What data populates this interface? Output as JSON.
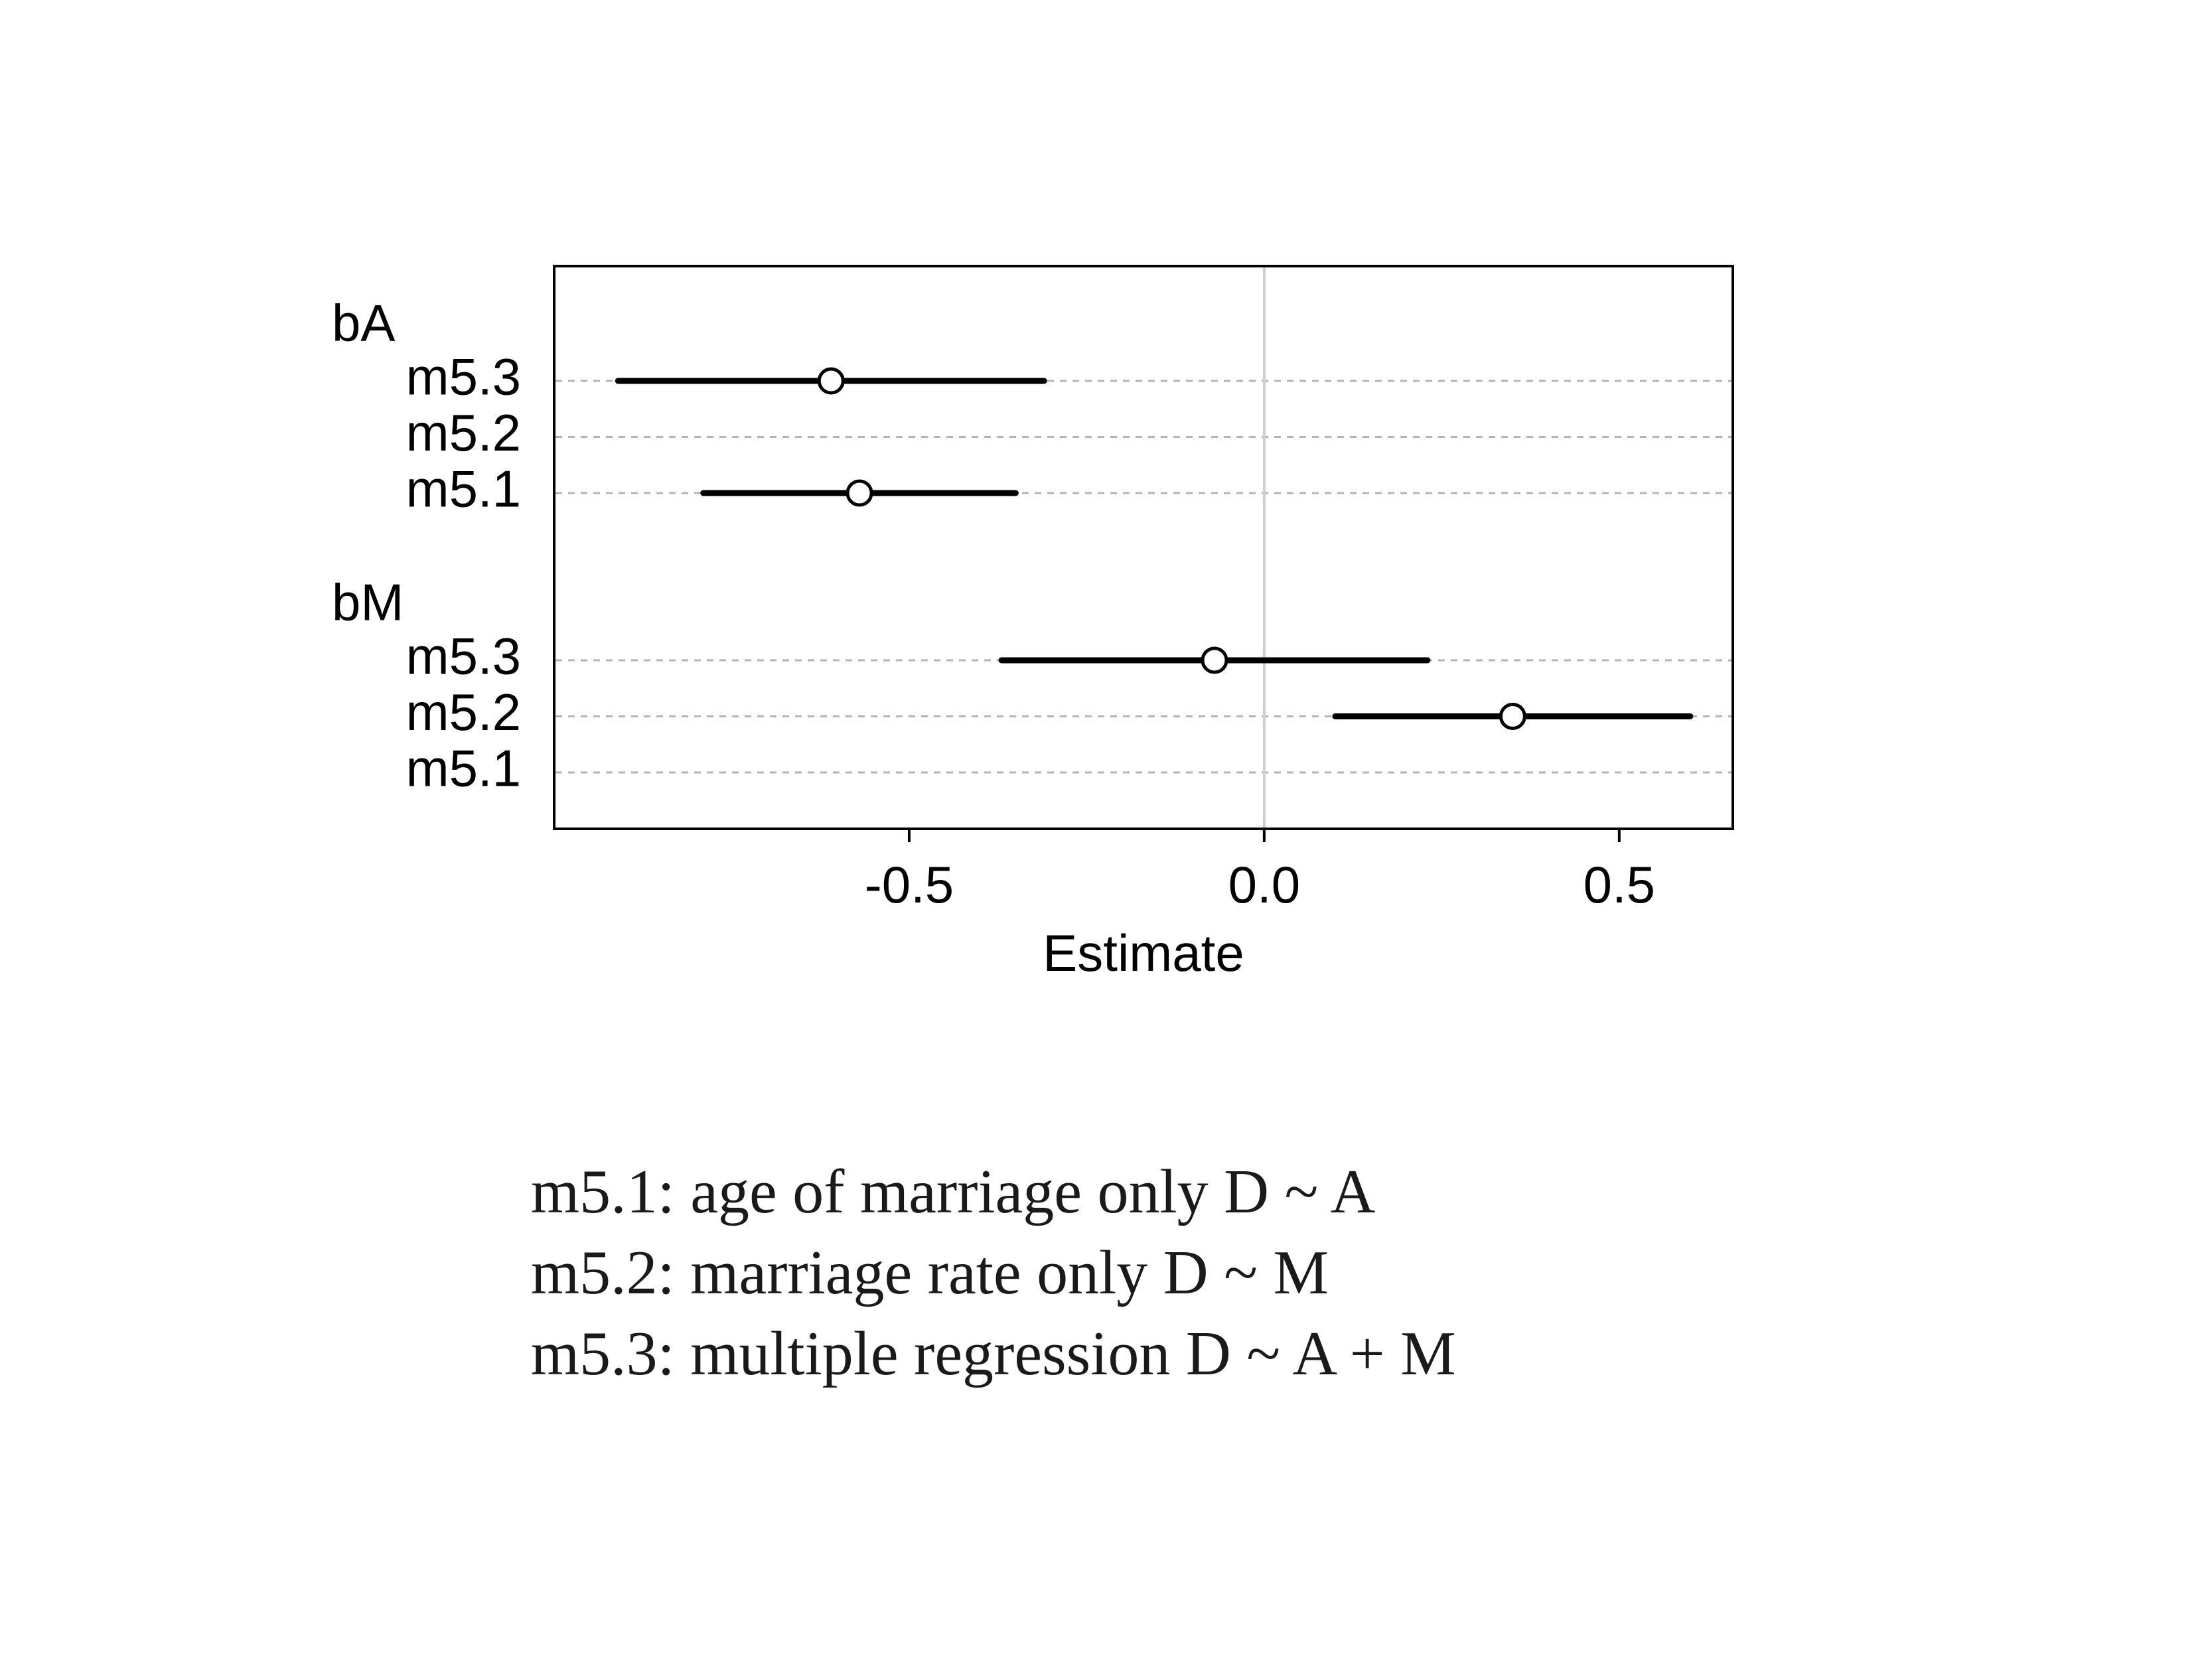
{
  "chart_data": {
    "type": "dot-interval",
    "title": "",
    "xlabel": "Estimate",
    "ylabel": "",
    "xlim": [
      -1.0,
      0.66
    ],
    "xticks": [
      -0.5,
      0.0,
      0.5
    ],
    "xtick_labels": [
      "-0.5",
      "0.0",
      "0.5"
    ],
    "reference_line_x": 0.0,
    "grid": "dashed horizontal row guides",
    "groups": [
      {
        "name": "bA",
        "rows": [
          {
            "label": "m5.3",
            "mean": -0.61,
            "lower": -0.91,
            "upper": -0.31
          },
          {
            "label": "m5.2",
            "mean": null,
            "lower": null,
            "upper": null
          },
          {
            "label": "m5.1",
            "mean": -0.57,
            "lower": -0.79,
            "upper": -0.35
          }
        ]
      },
      {
        "name": "bM",
        "rows": [
          {
            "label": "m5.3",
            "mean": -0.07,
            "lower": -0.37,
            "upper": 0.23
          },
          {
            "label": "m5.2",
            "mean": 0.35,
            "lower": 0.1,
            "upper": 0.6
          },
          {
            "label": "m5.1",
            "mean": null,
            "lower": null,
            "upper": null
          }
        ]
      }
    ],
    "colors": {
      "interval": "#000000",
      "point": "#000000",
      "guide": "#b4b4b4",
      "reference": "#cfcfcf",
      "frame": "#000000"
    }
  },
  "caption": {
    "lines": [
      "m5.1: age of marriage only D ~ A",
      "m5.2: marriage rate only D ~ M",
      "m5.3: multiple regression D ~ A + M"
    ]
  }
}
